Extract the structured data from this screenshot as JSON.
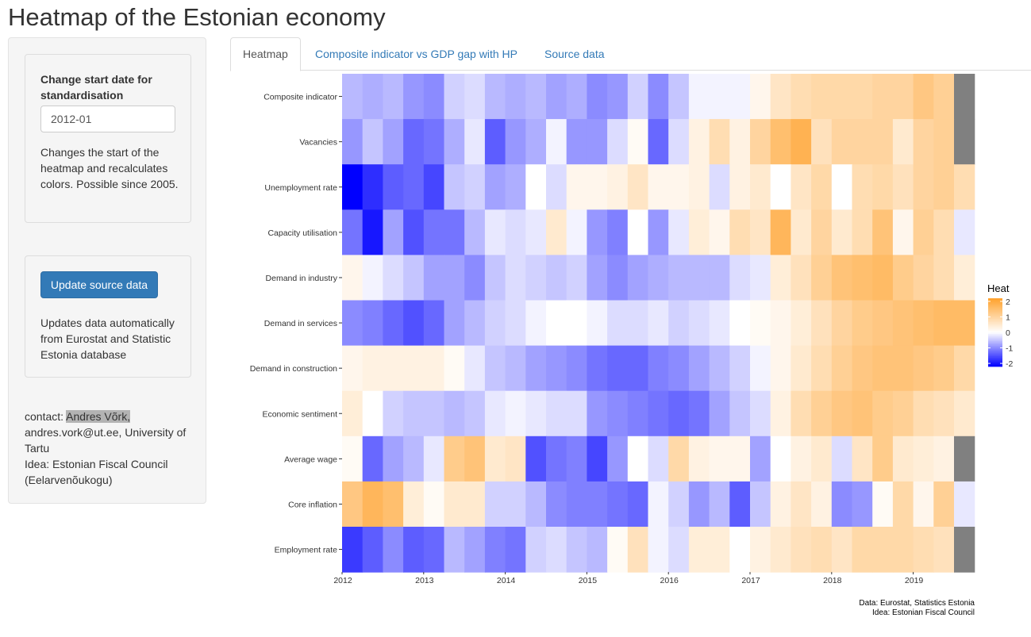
{
  "page": {
    "title": "Heatmap of the Estonian economy"
  },
  "sidebar": {
    "start_date": {
      "label": "Change start date for standardisation",
      "value": "2012-01",
      "help": "Changes the start of the heatmap and recalculates colors. Possible since 2005."
    },
    "update": {
      "button_label": "Update source data",
      "help": "Updates data automatically from Eurostat and Statistic Estonia database"
    },
    "contact": {
      "prefix": "contact: ",
      "name": "Andres Võrk,",
      "rest": " andres.vork@ut.ee, University of Tartu",
      "idea": "Idea: Estonian Fiscal Council (Eelarvenõukogu)"
    }
  },
  "tabs": [
    {
      "label": "Heatmap",
      "active": true
    },
    {
      "label": "Composite indicator vs GDP gap with HP",
      "active": false
    },
    {
      "label": "Source data",
      "active": false
    }
  ],
  "chart_data": {
    "type": "heatmap",
    "title": "",
    "x_ticks": [
      "2012",
      "2013",
      "2014",
      "2015",
      "2016",
      "2017",
      "2018",
      "2019"
    ],
    "x_start": "2012Q1",
    "x_end": "2019Q4",
    "rows": [
      {
        "name": "Composite indicator",
        "values": [
          -0.6,
          -0.7,
          -0.6,
          -0.9,
          -1.0,
          -0.4,
          -0.3,
          -0.6,
          -0.7,
          -0.6,
          -0.8,
          -0.7,
          -1.0,
          -0.9,
          -0.4,
          -1.0,
          -0.5,
          -0.1,
          -0.1,
          -0.1,
          0.2,
          0.6,
          0.8,
          0.9,
          0.9,
          0.9,
          1.0,
          1.0,
          1.3,
          1.1,
          null,
          null
        ]
      },
      {
        "name": "Vacancies",
        "values": [
          -0.9,
          -0.5,
          -0.8,
          -1.3,
          -1.2,
          -0.7,
          -0.2,
          -1.4,
          -0.9,
          -0.7,
          -0.1,
          -0.9,
          -0.9,
          -0.3,
          0.1,
          -1.3,
          -0.3,
          0.3,
          0.8,
          0.3,
          1.0,
          1.5,
          1.8,
          0.7,
          1.0,
          1.0,
          1.0,
          0.5,
          1.0,
          1.1,
          null,
          null
        ]
      },
      {
        "name": "Unemployment rate",
        "values": [
          -2.2,
          -1.8,
          -1.4,
          -1.3,
          -1.6,
          -0.5,
          -0.4,
          -0.8,
          -0.7,
          0.0,
          -0.3,
          0.2,
          0.2,
          0.3,
          0.6,
          0.2,
          0.2,
          0.3,
          -0.3,
          0.3,
          0.5,
          0.0,
          0.6,
          0.9,
          0.0,
          0.8,
          0.9,
          0.7,
          1.0,
          1.1,
          0.8,
          null
        ]
      },
      {
        "name": "Capacity utilisation",
        "values": [
          -1.2,
          -2.0,
          -0.8,
          -1.5,
          -1.2,
          -1.2,
          -0.6,
          -0.2,
          -0.3,
          -0.2,
          0.5,
          -0.1,
          -0.9,
          -1.1,
          0.0,
          -0.9,
          -0.2,
          0.4,
          0.2,
          0.8,
          0.6,
          1.7,
          0.5,
          1.0,
          0.5,
          0.8,
          1.4,
          0.2,
          1.1,
          0.8,
          -0.2,
          null
        ]
      },
      {
        "name": "Demand in industry",
        "values": [
          0.2,
          -0.1,
          -0.3,
          -0.5,
          -0.8,
          -0.8,
          -1.0,
          -0.5,
          -0.3,
          -0.4,
          -0.5,
          -0.4,
          -0.8,
          -1.0,
          -0.8,
          -0.7,
          -0.6,
          -0.6,
          -0.6,
          -0.3,
          -0.2,
          0.4,
          0.7,
          1.1,
          1.4,
          1.5,
          1.6,
          1.2,
          1.0,
          0.8,
          0.4,
          null
        ]
      },
      {
        "name": "Demand in services",
        "values": [
          -1.0,
          -1.1,
          -1.3,
          -1.5,
          -1.3,
          -0.8,
          -0.6,
          -0.4,
          -0.3,
          -0.1,
          0.0,
          0.0,
          -0.1,
          -0.3,
          -0.3,
          -0.2,
          -0.4,
          -0.3,
          -0.2,
          0.0,
          0.1,
          0.2,
          0.4,
          0.7,
          1.0,
          1.2,
          1.3,
          1.4,
          1.5,
          1.6,
          1.6,
          1.6
        ]
      },
      {
        "name": "Demand in construction",
        "values": [
          0.2,
          0.3,
          0.3,
          0.3,
          0.3,
          0.1,
          -0.2,
          -0.5,
          -0.6,
          -0.8,
          -0.9,
          -1.0,
          -1.2,
          -1.3,
          -1.3,
          -1.1,
          -1.0,
          -0.8,
          -0.6,
          -0.4,
          -0.1,
          0.2,
          0.5,
          0.8,
          1.1,
          1.3,
          1.4,
          1.4,
          1.3,
          1.2,
          0.9,
          0.7
        ]
      },
      {
        "name": "Economic sentiment",
        "values": [
          0.4,
          0.0,
          -0.4,
          -0.5,
          -0.5,
          -0.6,
          -0.5,
          -0.2,
          -0.1,
          -0.2,
          -0.3,
          -0.3,
          -0.9,
          -1.0,
          -1.1,
          -1.2,
          -1.3,
          -1.2,
          -0.8,
          -0.5,
          -0.3,
          0.3,
          0.8,
          1.1,
          1.3,
          1.4,
          1.2,
          1.1,
          0.8,
          0.7,
          0.5,
          0.1
        ]
      },
      {
        "name": "Average wage",
        "values": [
          0.1,
          -1.3,
          -0.8,
          -0.6,
          -0.2,
          1.2,
          1.4,
          0.5,
          0.6,
          -1.5,
          -1.2,
          -1.1,
          -1.6,
          -0.9,
          0.0,
          -0.3,
          0.9,
          0.3,
          0.2,
          0.2,
          -0.8,
          0.0,
          0.3,
          0.5,
          -0.3,
          0.6,
          1.2,
          0.5,
          0.4,
          0.3,
          null,
          null
        ]
      },
      {
        "name": "Core inflation",
        "values": [
          1.3,
          1.7,
          1.5,
          0.4,
          0.1,
          0.5,
          0.5,
          -0.4,
          -0.4,
          -0.6,
          -1.0,
          -1.1,
          -1.1,
          -1.2,
          -1.3,
          -0.1,
          -0.4,
          -0.9,
          -0.6,
          -1.4,
          -0.5,
          0.3,
          0.6,
          0.3,
          -1.0,
          -0.9,
          0.1,
          0.9,
          0.2,
          1.1,
          -0.2,
          null
        ]
      },
      {
        "name": "Employment rate",
        "values": [
          -1.7,
          -1.4,
          -1.0,
          -1.4,
          -1.3,
          -0.6,
          -0.8,
          -1.1,
          -1.2,
          -0.4,
          -0.3,
          -0.5,
          -0.6,
          0.1,
          0.7,
          -0.1,
          -0.3,
          0.4,
          0.4,
          0.0,
          0.3,
          0.5,
          0.7,
          0.8,
          0.6,
          0.9,
          0.9,
          0.9,
          0.8,
          0.7,
          null,
          null
        ]
      }
    ],
    "legend": {
      "title": "Heat",
      "ticks": [
        "2",
        "1",
        "0",
        "-1",
        "-2"
      ],
      "position": "right"
    },
    "colors": {
      "high": "#ffa12b",
      "mid": "#ffffff",
      "low": "#0000ff",
      "na": "#808080"
    },
    "caption": [
      "Data: Eurostat, Statistics Estonia",
      "Idea: Estonian Fiscal Council"
    ]
  }
}
